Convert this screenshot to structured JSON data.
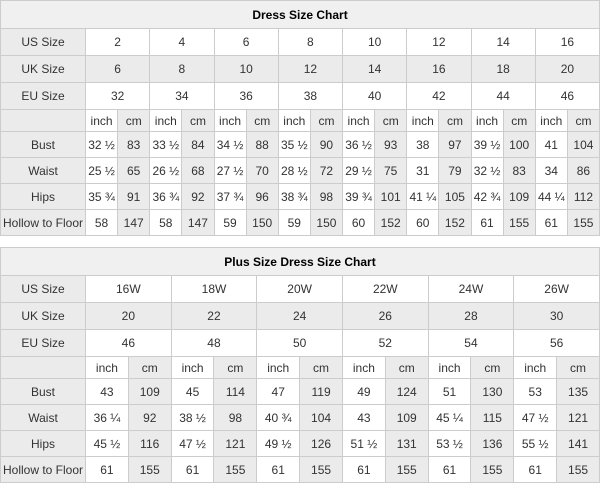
{
  "colors": {
    "stripe_bg": "#ebebeb",
    "title_bg": "#f0f0f0",
    "border": "#cccccc",
    "text": "#333333",
    "title_text": "#000000"
  },
  "chart_data": [
    {
      "type": "table",
      "title": "Dress Size Chart",
      "unit_headers": [
        "inch",
        "cm"
      ],
      "size_rows": [
        {
          "label": "US Size",
          "values": [
            "2",
            "4",
            "6",
            "8",
            "10",
            "12",
            "14",
            "16"
          ]
        },
        {
          "label": "UK Size",
          "values": [
            "6",
            "8",
            "10",
            "12",
            "14",
            "16",
            "18",
            "20"
          ]
        },
        {
          "label": "EU Size",
          "values": [
            "32",
            "34",
            "36",
            "38",
            "40",
            "42",
            "44",
            "46"
          ]
        }
      ],
      "measure_rows": [
        {
          "label": "Bust",
          "values": [
            "32 ½",
            "83",
            "33 ½",
            "84",
            "34 ½",
            "88",
            "35 ½",
            "90",
            "36 ½",
            "93",
            "38",
            "97",
            "39 ½",
            "100",
            "41",
            "104"
          ]
        },
        {
          "label": "Waist",
          "values": [
            "25 ½",
            "65",
            "26 ½",
            "68",
            "27 ½",
            "70",
            "28 ½",
            "72",
            "29 ½",
            "75",
            "31",
            "79",
            "32 ½",
            "83",
            "34",
            "86"
          ]
        },
        {
          "label": "Hips",
          "values": [
            "35 ¾",
            "91",
            "36 ¾",
            "92",
            "37 ¾",
            "96",
            "38 ¾",
            "98",
            "39 ¾",
            "101",
            "41 ¼",
            "105",
            "42 ¾",
            "109",
            "44 ¼",
            "112"
          ]
        },
        {
          "label": "Hollow to Floor",
          "values": [
            "58",
            "147",
            "58",
            "147",
            "59",
            "150",
            "59",
            "150",
            "60",
            "152",
            "60",
            "152",
            "61",
            "155",
            "61",
            "155"
          ]
        }
      ]
    },
    {
      "type": "table",
      "title": "Plus Size Dress Size Chart",
      "unit_headers": [
        "inch",
        "cm"
      ],
      "size_rows": [
        {
          "label": "US Size",
          "values": [
            "16W",
            "18W",
            "20W",
            "22W",
            "24W",
            "26W"
          ]
        },
        {
          "label": "UK Size",
          "values": [
            "20",
            "22",
            "24",
            "26",
            "28",
            "30"
          ]
        },
        {
          "label": "EU Size",
          "values": [
            "46",
            "48",
            "50",
            "52",
            "54",
            "56"
          ]
        }
      ],
      "measure_rows": [
        {
          "label": "Bust",
          "values": [
            "43",
            "109",
            "45",
            "114",
            "47",
            "119",
            "49",
            "124",
            "51",
            "130",
            "53",
            "135"
          ]
        },
        {
          "label": "Waist",
          "values": [
            "36 ¼",
            "92",
            "38 ½",
            "98",
            "40 ¾",
            "104",
            "43",
            "109",
            "45 ¼",
            "115",
            "47 ½",
            "121"
          ]
        },
        {
          "label": "Hips",
          "values": [
            "45 ½",
            "116",
            "47 ½",
            "121",
            "49 ½",
            "126",
            "51 ½",
            "131",
            "53 ½",
            "136",
            "55 ½",
            "141"
          ]
        },
        {
          "label": "Hollow to Floor",
          "values": [
            "61",
            "155",
            "61",
            "155",
            "61",
            "155",
            "61",
            "155",
            "61",
            "155",
            "61",
            "155"
          ]
        }
      ]
    }
  ]
}
